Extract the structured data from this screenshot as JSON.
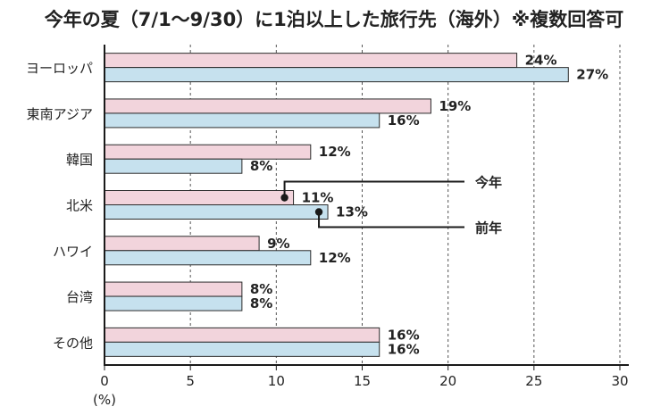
{
  "chart_data": {
    "type": "bar",
    "orientation": "horizontal",
    "title": "今年の夏（7/1～9/30）に1泊以上した旅行先（海外）※複数回答可",
    "categories": [
      "ヨーロッパ",
      "東南アジア",
      "韓国",
      "北米",
      "ハワイ",
      "台湾",
      "その他"
    ],
    "series": [
      {
        "name": "今年",
        "color": "#f2d4dc",
        "values": [
          24,
          19,
          12,
          11,
          9,
          8,
          16
        ],
        "labels": [
          "24%",
          "19%",
          "12%",
          "11%",
          "9%",
          "8%",
          "16%"
        ]
      },
      {
        "name": "前年",
        "color": "#c6e1ee",
        "values": [
          27,
          16,
          8,
          13,
          12,
          8,
          16
        ],
        "labels": [
          "27%",
          "16%",
          "8%",
          "13%",
          "12%",
          "8%",
          "16%"
        ]
      }
    ],
    "xlim": [
      0,
      30
    ],
    "xticks": [
      "0",
      "5",
      "10",
      "15",
      "20",
      "25",
      "30"
    ],
    "xunit": "(%)",
    "grid": "dashed vertical",
    "legend_style": "callout",
    "callout_category": "北米"
  }
}
